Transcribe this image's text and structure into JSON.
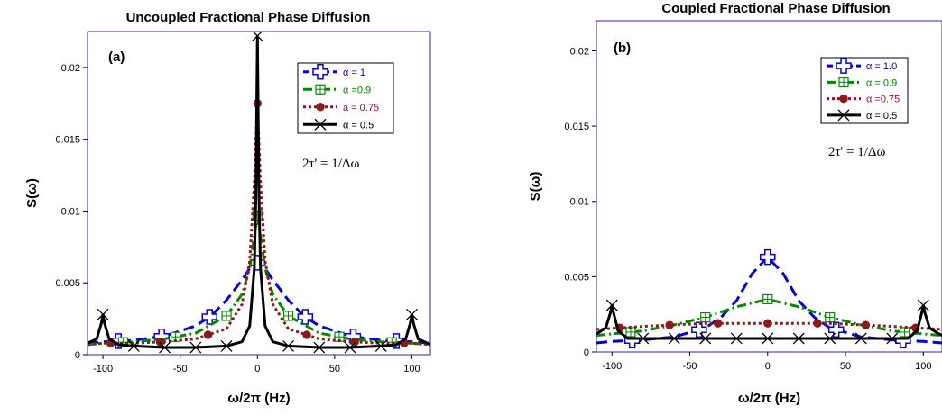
{
  "chart_data": [
    {
      "type": "line",
      "panel_label": "(a)",
      "title": "Uncoupled Fractional Phase Diffusion",
      "xlabel": "ω/2π  (Hz)",
      "ylabel": "S(ω)",
      "annotation": "2τ' =  1/Δω",
      "xlim": [
        -110,
        112
      ],
      "ylim": [
        0,
        0.0225
      ],
      "xticks": [
        -100,
        -50,
        0,
        50,
        100
      ],
      "yticks": [
        0,
        0.005,
        0.01,
        0.015,
        0.02
      ],
      "xtick_labels": [
        "-100",
        "-50",
        "0",
        "50",
        "100"
      ],
      "ytick_labels": [
        "0",
        "0.005",
        "0.01",
        "0.015",
        "0.02"
      ],
      "legend_position": "top-right",
      "series": [
        {
          "name": "α = 1",
          "color": "#0000dd",
          "dash": "dashed",
          "marker": "plus",
          "x": [
            -110,
            -100,
            -80,
            -60,
            -40,
            -30,
            -20,
            -10,
            -5,
            0,
            5,
            10,
            20,
            30,
            40,
            60,
            80,
            100,
            112
          ],
          "y": [
            0.0008,
            0.0009,
            0.001,
            0.0013,
            0.002,
            0.0027,
            0.0038,
            0.0052,
            0.006,
            0.0064,
            0.006,
            0.0052,
            0.0038,
            0.0027,
            0.002,
            0.0013,
            0.001,
            0.0009,
            0.0008
          ],
          "markers_x": [
            -90,
            -62,
            -31,
            0,
            31,
            62,
            90
          ]
        },
        {
          "name": "α =0.9",
          "color": "#008800",
          "dash": "dashdot",
          "marker": "boxplus",
          "x": [
            -110,
            -100,
            -80,
            -60,
            -40,
            -20,
            -10,
            -5,
            -2,
            0,
            2,
            5,
            10,
            20,
            40,
            60,
            80,
            100,
            112
          ],
          "y": [
            0.0007,
            0.0008,
            0.0009,
            0.0011,
            0.0015,
            0.0027,
            0.0042,
            0.006,
            0.0083,
            0.0097,
            0.0083,
            0.006,
            0.0042,
            0.0027,
            0.0015,
            0.0011,
            0.0009,
            0.0008,
            0.0007
          ],
          "markers_x": [
            -87,
            -53,
            -20,
            0,
            20,
            53,
            87
          ]
        },
        {
          "name": "a = 0.75",
          "color": "#8b1a1a",
          "dash": "dotted",
          "marker": "circle",
          "x": [
            -110,
            -100,
            -80,
            -60,
            -40,
            -20,
            -10,
            -5,
            -2,
            0,
            2,
            5,
            10,
            20,
            40,
            60,
            80,
            100,
            112
          ],
          "y": [
            0.0007,
            0.0008,
            0.0008,
            0.0009,
            0.0011,
            0.0018,
            0.0035,
            0.0065,
            0.012,
            0.0175,
            0.012,
            0.0065,
            0.0035,
            0.0018,
            0.0011,
            0.0009,
            0.0008,
            0.0008,
            0.0007
          ],
          "markers_x": [
            -95,
            -63,
            -32,
            0,
            32,
            63,
            95
          ]
        },
        {
          "name": "α = 0.5",
          "color": "#000000",
          "dash": "solid",
          "marker": "cross",
          "x": [
            -110,
            -104,
            -101,
            -100,
            -99,
            -96,
            -90,
            -80,
            -60,
            -40,
            -20,
            -10,
            -5,
            -2,
            -1,
            0,
            1,
            2,
            5,
            10,
            20,
            40,
            60,
            80,
            90,
            96,
            99,
            100,
            101,
            104,
            110,
            112
          ],
          "y": [
            0.0008,
            0.0011,
            0.0022,
            0.0028,
            0.0022,
            0.0011,
            0.0007,
            0.0006,
            0.0005,
            0.0005,
            0.0006,
            0.0009,
            0.002,
            0.006,
            0.011,
            0.0222,
            0.011,
            0.006,
            0.002,
            0.0009,
            0.0006,
            0.0005,
            0.0005,
            0.0006,
            0.0007,
            0.0011,
            0.0022,
            0.0028,
            0.0022,
            0.0011,
            0.0008,
            0.0007
          ],
          "markers_x": [
            -100,
            -80,
            -60,
            -40,
            -20,
            0,
            20,
            40,
            60,
            80,
            100
          ]
        }
      ]
    },
    {
      "type": "line",
      "panel_label": "(b)",
      "title": "Coupled Fractional Phase Diffusion",
      "xlabel": "ω/2π  (Hz)",
      "ylabel": "S(ω)",
      "annotation": "2τ' =  1/Δω",
      "xlim": [
        -110,
        112
      ],
      "ylim": [
        0,
        0.022
      ],
      "xticks": [
        -100,
        -50,
        0,
        50,
        100
      ],
      "yticks": [
        0,
        0.005,
        0.01,
        0.015,
        0.02
      ],
      "xtick_labels": [
        "-100",
        "-50",
        "0",
        "50",
        "100"
      ],
      "ytick_labels": [
        "0",
        "0.005",
        "0.01",
        "0.015",
        "0.02"
      ],
      "legend_position": "top-right",
      "series": [
        {
          "name": "α = 1.0",
          "color": "#0000dd",
          "dash": "dashed",
          "marker": "plus",
          "x": [
            -110,
            -100,
            -80,
            -60,
            -40,
            -30,
            -20,
            -10,
            0,
            10,
            20,
            30,
            40,
            60,
            80,
            100,
            112
          ],
          "y": [
            0.0006,
            0.0007,
            0.0008,
            0.001,
            0.0016,
            0.0023,
            0.0034,
            0.0052,
            0.0063,
            0.0052,
            0.0034,
            0.0023,
            0.0016,
            0.001,
            0.0008,
            0.0007,
            0.0006
          ],
          "markers_x": [
            -87,
            -44,
            0,
            44,
            87
          ]
        },
        {
          "name": "α = 0.9",
          "color": "#008800",
          "dash": "dashdot",
          "marker": "boxplus",
          "x": [
            -110,
            -100,
            -80,
            -60,
            -40,
            -20,
            0,
            20,
            40,
            60,
            80,
            100,
            112
          ],
          "y": [
            0.0011,
            0.0012,
            0.0014,
            0.0018,
            0.0023,
            0.003,
            0.0035,
            0.003,
            0.0023,
            0.0018,
            0.0014,
            0.0012,
            0.0011
          ],
          "markers_x": [
            -88,
            -40,
            0,
            40,
            88
          ]
        },
        {
          "name": "α =0.75",
          "color": "#8b1a1a",
          "dash": "dotted",
          "marker": "circle",
          "x": [
            -110,
            -95,
            -80,
            -60,
            -40,
            -20,
            0,
            20,
            40,
            60,
            80,
            95,
            112
          ],
          "y": [
            0.0015,
            0.0016,
            0.0017,
            0.0018,
            0.0019,
            0.0019,
            0.0019,
            0.0019,
            0.0019,
            0.0018,
            0.0017,
            0.0016,
            0.0015
          ],
          "markers_x": [
            -95,
            -63,
            -32,
            0,
            32,
            63,
            95
          ]
        },
        {
          "name": "α = 0.5",
          "color": "#000000",
          "dash": "solid",
          "marker": "cross",
          "x": [
            -110,
            -104,
            -101,
            -100,
            -99,
            -96,
            -90,
            -60,
            -30,
            0,
            30,
            60,
            90,
            96,
            99,
            100,
            101,
            104,
            110,
            112
          ],
          "y": [
            0.0012,
            0.0016,
            0.0026,
            0.0031,
            0.0026,
            0.0014,
            0.0009,
            0.0009,
            0.0009,
            0.0009,
            0.0009,
            0.0009,
            0.0009,
            0.0014,
            0.0026,
            0.0031,
            0.0026,
            0.0016,
            0.0012,
            0.0011
          ],
          "markers_x": [
            -100,
            -80,
            -60,
            -40,
            -20,
            0,
            20,
            40,
            60,
            80,
            100
          ]
        }
      ]
    }
  ]
}
